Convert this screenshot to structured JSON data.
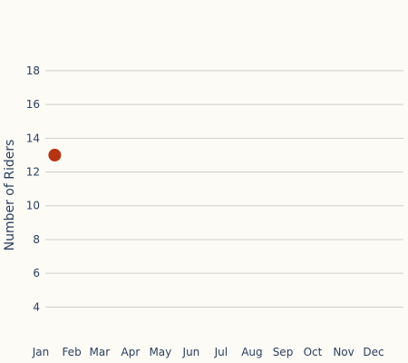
{
  "chart_data": {
    "type": "scatter",
    "title": "",
    "xlabel": "",
    "ylabel": "Number of Riders",
    "x_categories": [
      "Jan",
      "Feb",
      "Mar",
      "Apr",
      "May",
      "Jun",
      "Jul",
      "Aug",
      "Sep",
      "Oct",
      "Nov",
      "Dec"
    ],
    "y_ticks": [
      4,
      6,
      8,
      10,
      12,
      14,
      16,
      18
    ],
    "ylim": [
      2.3,
      19.5
    ],
    "grid": "horizontal",
    "series": [
      {
        "points": [
          {
            "x": "Jan 15",
            "y": 13
          }
        ]
      }
    ]
  },
  "style": {
    "background": "#fcfbf6",
    "grid_color": "#cfcfc9",
    "text_color": "#2a3f5f",
    "marker_color": "#b53412"
  }
}
